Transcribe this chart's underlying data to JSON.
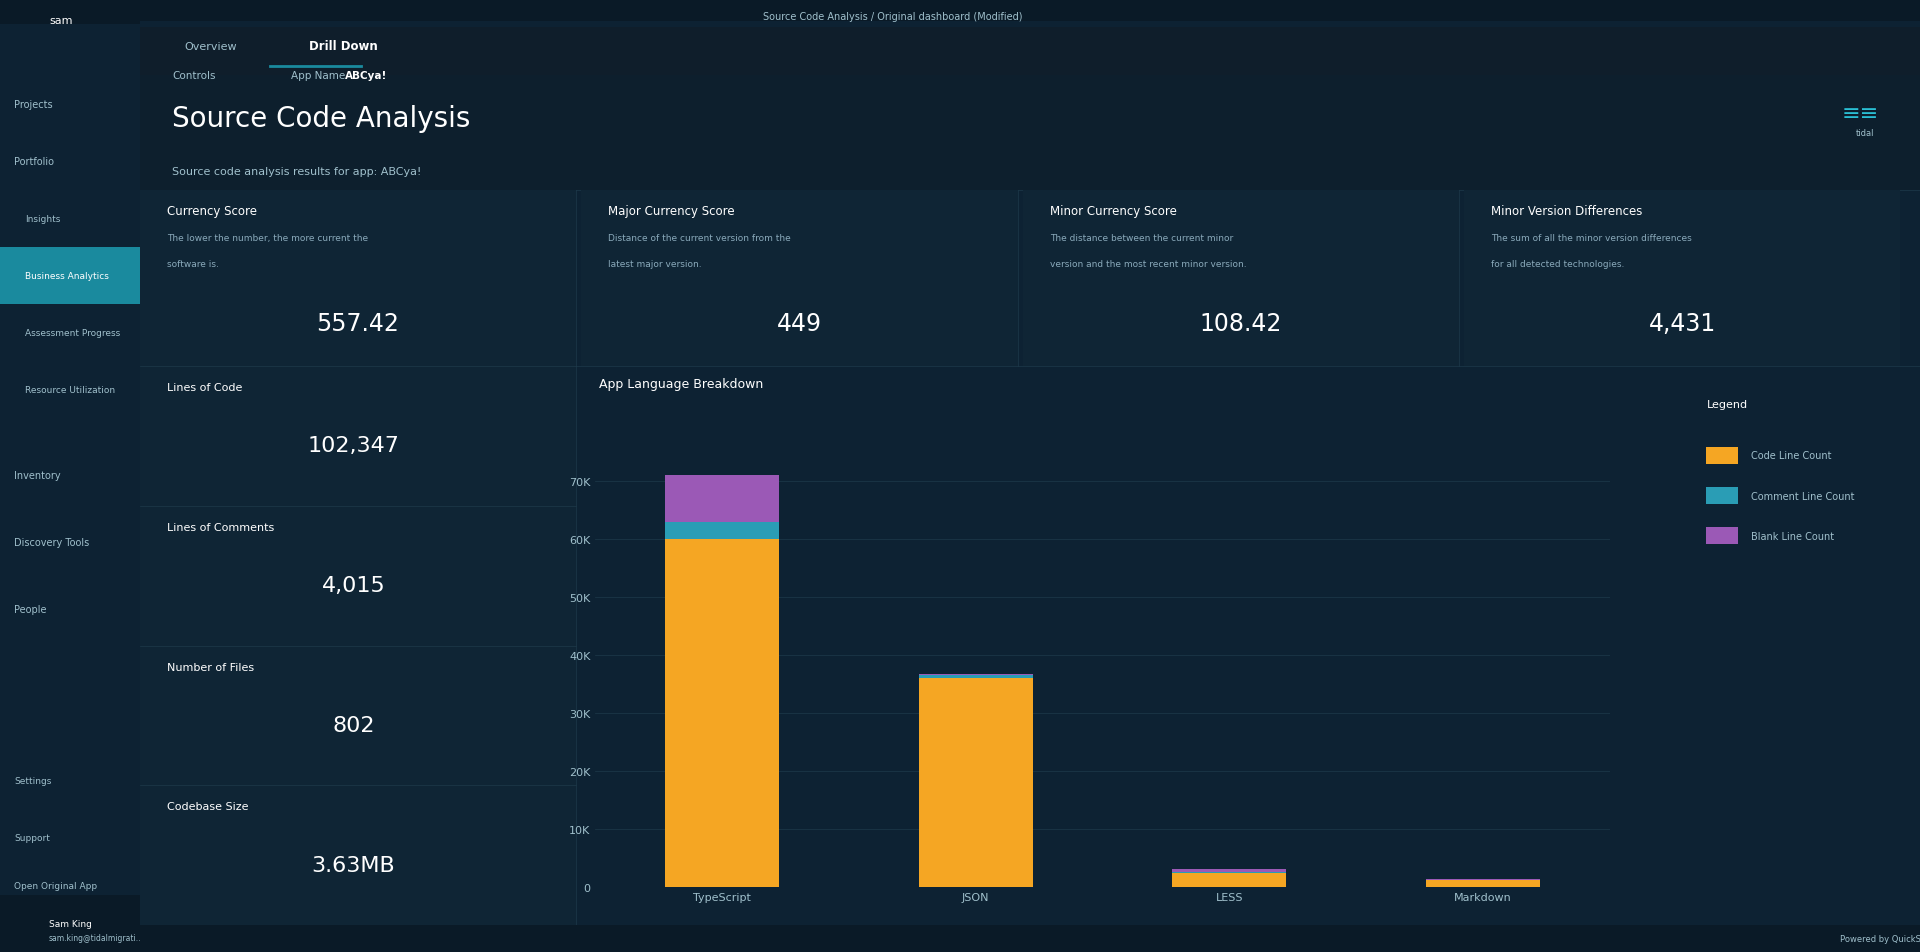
{
  "bg_dark": "#0d2233",
  "bg_sidebar": "#0d2233",
  "bg_panel": "#0f2535",
  "bg_card": "#102030",
  "bg_active": "#1a8a9e",
  "text_white": "#ffffff",
  "text_light": "#a0c0cc",
  "text_subtitle": "#8aaabb",
  "border_color": "#1e3a4a",
  "teal_accent": "#1a8a9e",
  "title": "Source Code Analysis",
  "subtitle": "Source code analysis results for app: ABCya!",
  "tab_overview": "Overview",
  "tab_drilldown": "Drill Down",
  "controls_label": "Controls",
  "app_name_label": "App Name",
  "app_name_value": "ABCya!",
  "metric_cards": [
    {
      "title": "Currency Score",
      "desc": "The lower the number, the more current the software is.",
      "value": "557.42"
    },
    {
      "title": "Major Currency Score",
      "desc": "Distance of the current version from the latest major version.",
      "value": "449"
    },
    {
      "title": "Minor Currency Score",
      "desc": "The distance between the current minor version and the most recent minor version.",
      "value": "108.42"
    },
    {
      "title": "Minor Version Differences",
      "desc": "The sum of all the minor version differences for all detected technologies.",
      "value": "4,431"
    }
  ],
  "stat_cards": [
    {
      "label": "Lines of Code",
      "value": "102,347"
    },
    {
      "label": "Lines of Comments",
      "value": "4,015"
    },
    {
      "label": "Number of Files",
      "value": "802"
    },
    {
      "label": "Codebase Size",
      "value": "3.63MB"
    }
  ],
  "chart_title": "App Language Breakdown",
  "legend_title": "Legend",
  "legend_items": [
    {
      "label": "Code Line Count",
      "color": "#f5a623"
    },
    {
      "label": "Comment Line Count",
      "color": "#2a9db5"
    },
    {
      "label": "Blank Line Count",
      "color": "#9b59b6"
    }
  ],
  "chart_categories": [
    "TypeScript",
    "JSON",
    "LESS",
    "Markdown"
  ],
  "chart_code": [
    60000,
    36000,
    2500,
    1200
  ],
  "chart_comment": [
    3000,
    500,
    100,
    50
  ],
  "chart_blank": [
    8000,
    200,
    500,
    100
  ],
  "chart_yticks": [
    0,
    10000,
    20000,
    30000,
    40000,
    50000,
    60000,
    70000
  ],
  "chart_ytick_labels": [
    "0",
    "10K",
    "20K",
    "30K",
    "40K",
    "50K",
    "60K",
    "70K"
  ],
  "sidebar_items": [
    {
      "label": "Projects",
      "icon": true,
      "indent": 0
    },
    {
      "label": "Portfolio",
      "icon": true,
      "indent": 0,
      "expanded": true
    },
    {
      "label": "Insights",
      "indent": 1
    },
    {
      "label": "Business Analytics",
      "indent": 1,
      "active": true
    },
    {
      "label": "Assessment Progress",
      "indent": 1
    },
    {
      "label": "Resource Utilization",
      "indent": 1
    },
    {
      "label": "Inventory",
      "icon": true,
      "indent": 0
    },
    {
      "label": "Discovery Tools",
      "icon": true,
      "indent": 0
    },
    {
      "label": "People",
      "icon": true,
      "indent": 0
    }
  ],
  "sidebar_bottom": [
    {
      "label": "Settings"
    },
    {
      "label": "Support"
    },
    {
      "label": "Open Original App"
    }
  ],
  "user_name": "Sam King",
  "user_email": "sam.king@tidalmigrati...",
  "nav_title": "Source Code Analysis / Original dashboard (Modified)",
  "tidal_logo_color": "#2abfd4",
  "color_code": "#f5a623",
  "color_comment": "#2a9db5",
  "color_blank": "#9b59b6"
}
